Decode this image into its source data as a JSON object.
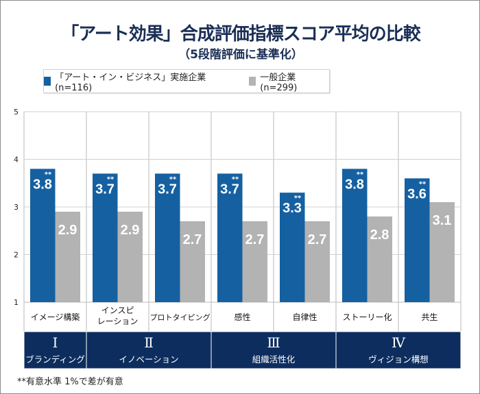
{
  "chart_data": {
    "type": "bar",
    "title": "「アート効果」合成評価指標スコア平均の比較",
    "subtitle": "（5段階評価に基準化）",
    "categories": [
      "イメージ構築",
      "インスピ\nレーション",
      "プロトタイピング",
      "感性",
      "自律性",
      "ストーリー化",
      "共生"
    ],
    "groups": [
      {
        "numeral": "Ⅰ",
        "label": "ブランディング",
        "span": 1
      },
      {
        "numeral": "Ⅱ",
        "label": "イノベーション",
        "span": 2
      },
      {
        "numeral": "Ⅲ",
        "label": "組織活性化",
        "span": 2
      },
      {
        "numeral": "Ⅳ",
        "label": "ヴィジョン構想",
        "span": 2
      }
    ],
    "series": [
      {
        "name": "「アート・イン・ビジネス」実施企業 (n=116)",
        "color": "#1560a1",
        "values": [
          3.8,
          3.7,
          3.7,
          3.7,
          3.3,
          3.8,
          3.6
        ],
        "marks": [
          "**",
          "**",
          "**",
          "**",
          "**",
          "**",
          "**"
        ]
      },
      {
        "name": "一般企業 (n=299)",
        "color": "#b3b3b3",
        "values": [
          2.9,
          2.9,
          2.7,
          2.7,
          2.7,
          2.8,
          3.1
        ]
      }
    ],
    "yticks": [
      1,
      2,
      3,
      4,
      5
    ],
    "ylim": [
      1,
      5
    ],
    "grid": true,
    "legend": "top",
    "note": "**有意水準 1%で差が有意",
    "group_color": "#0c2d5e"
  }
}
